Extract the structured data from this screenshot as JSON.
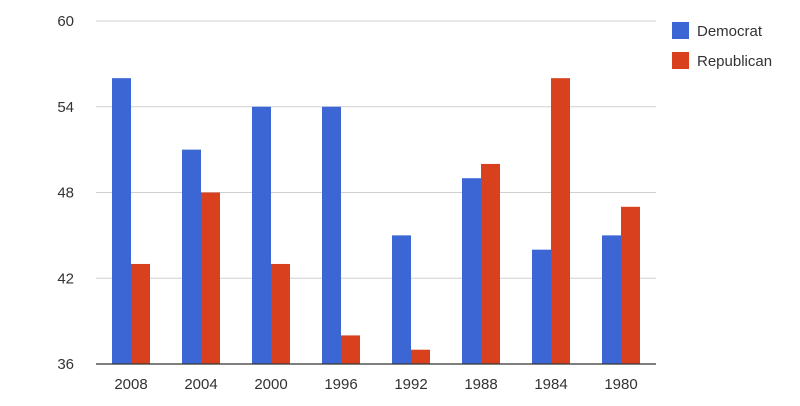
{
  "chart_data": {
    "type": "bar",
    "title": "",
    "xlabel": "",
    "ylabel": "",
    "categories": [
      "2008",
      "2004",
      "2000",
      "1996",
      "1992",
      "1988",
      "1984",
      "1980"
    ],
    "series": [
      {
        "name": "Democrat",
        "color": "#3b66d4",
        "values": [
          56,
          51,
          54,
          54,
          45,
          49,
          44,
          45
        ]
      },
      {
        "name": "Republican",
        "color": "#d9401e",
        "values": [
          43,
          48,
          43,
          38,
          37,
          50,
          56,
          47
        ]
      }
    ],
    "ylim": [
      36,
      60
    ],
    "yticks": [
      "36",
      "42",
      "48",
      "54",
      "60"
    ],
    "grid": true,
    "legend": "top-right"
  }
}
